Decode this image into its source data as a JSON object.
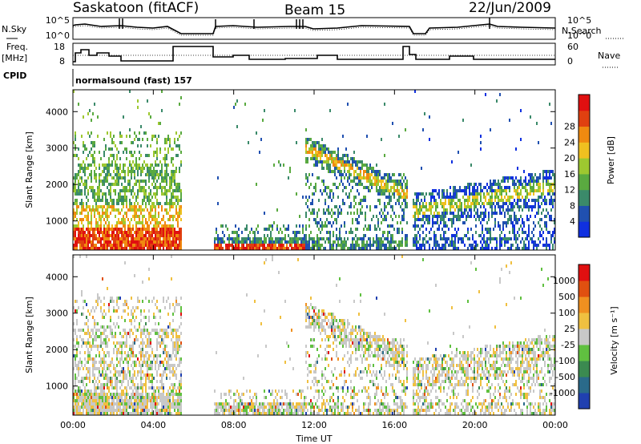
{
  "header": {
    "left_title": "Saskatoon (fitACF)",
    "center_title": "Beam 15",
    "date": "22/Jun/2009"
  },
  "status_panel": {
    "nsky_label": "N.Sky",
    "nsearch_label": "N.Search",
    "freq_label_1": "Freq.",
    "freq_label_2": "[MHz]",
    "nave_label": "Nave",
    "cpid_label": "CPID",
    "cpid_value": "normalsound (fast) 157",
    "noise_ticks": [
      "10^5",
      "10^0"
    ],
    "freq_ticks": [
      "18",
      "8"
    ],
    "nave_ticks": [
      "60",
      "0"
    ]
  },
  "chart_data": [
    {
      "type": "heatmap",
      "name": "Power",
      "xlabel": "",
      "ylabel": "Slant Range [km]",
      "x_ticks": [
        "00:00",
        "04:00",
        "08:00",
        "12:00",
        "16:00",
        "20:00",
        "00:00"
      ],
      "y_ticks": [
        1000,
        2000,
        3000,
        4000
      ],
      "ylim": [
        200,
        4600
      ],
      "colorbar": {
        "label": "Power [dB]",
        "ticks": [
          4,
          8,
          12,
          16,
          20,
          24,
          28
        ],
        "range": [
          0,
          31
        ],
        "colors": [
          "#1030e0",
          "#2050b0",
          "#3b8a6a",
          "#5aaa40",
          "#9ec830",
          "#f0c020",
          "#f08a10",
          "#e04010",
          "#e01010"
        ]
      }
    },
    {
      "type": "heatmap",
      "name": "Velocity",
      "xlabel": "Time UT",
      "ylabel": "Slant Range [km]",
      "x_ticks": [
        "00:00",
        "04:00",
        "08:00",
        "12:00",
        "16:00",
        "20:00",
        "00:00"
      ],
      "y_ticks": [
        1000,
        2000,
        3000,
        4000
      ],
      "ylim": [
        200,
        4600
      ],
      "colorbar": {
        "label": "Velocity [m s⁻¹]",
        "ticks": [
          1000,
          500,
          100,
          25,
          -25,
          -100,
          -500,
          -1000
        ],
        "colors": [
          "#2040b0",
          "#2a6a8a",
          "#3b8a50",
          "#60c040",
          "#c8c8c8",
          "#f0c040",
          "#f09020",
          "#e05010",
          "#e01010"
        ]
      }
    }
  ],
  "colors": {
    "power_scale": [
      "#1030e0",
      "#2050b0",
      "#3b8a6a",
      "#5aaa40",
      "#9ec830",
      "#f0c020",
      "#f08a10",
      "#e04010",
      "#e01010"
    ],
    "velocity_scale": [
      "#2040b0",
      "#2a6a8a",
      "#3b8a50",
      "#60c040",
      "#c8c8c8",
      "#f0c040",
      "#f09020",
      "#e05010",
      "#e01010"
    ]
  }
}
